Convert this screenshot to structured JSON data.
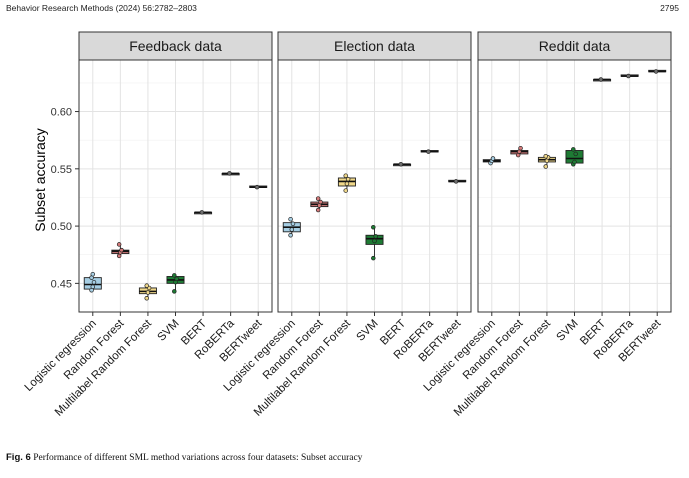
{
  "header": {
    "journal": "Behavior Research Methods (2024) 56:2782–2803",
    "page": "2795"
  },
  "caption": {
    "label": "Fig. 6",
    "text": "Performance of different SML method variations across four datasets: Subset accuracy"
  },
  "chart_data": {
    "type": "box",
    "ylabel": "Subset accuracy",
    "ylim": [
      0.425,
      0.645
    ],
    "yticks": [
      0.45,
      0.5,
      0.55,
      0.6
    ],
    "ytick_labels": [
      "0.45",
      "0.50",
      "0.55",
      "0.60"
    ],
    "grid": true,
    "categories": [
      "Logistic regression",
      "Random Forest",
      "Multilabel Random Forest",
      "SVM",
      "BERT",
      "RoBERTa",
      "BERTweet"
    ],
    "colors": [
      "#a6cee3",
      "#d57b7b",
      "#f0d88a",
      "#1e7b34",
      "#6e6e6e",
      "#6e6e6e",
      "#6e6e6e"
    ],
    "panels": [
      {
        "title": "Feedback data",
        "boxes": [
          {
            "min": 0.444,
            "q1": 0.445,
            "median": 0.449,
            "q3": 0.455,
            "max": 0.458,
            "points": [
              0.444,
              0.447,
              0.451,
              0.455,
              0.458
            ]
          },
          {
            "min": 0.474,
            "q1": 0.476,
            "median": 0.478,
            "q3": 0.479,
            "max": 0.484,
            "points": [
              0.474,
              0.477,
              0.479,
              0.484
            ]
          },
          {
            "min": 0.437,
            "q1": 0.441,
            "median": 0.443,
            "q3": 0.446,
            "max": 0.448,
            "points": [
              0.437,
              0.442,
              0.446,
              0.448
            ]
          },
          {
            "min": 0.443,
            "q1": 0.45,
            "median": 0.453,
            "q3": 0.456,
            "max": 0.457,
            "points": [
              0.443,
              0.451,
              0.454,
              0.457
            ]
          },
          {
            "min": 0.511,
            "q1": 0.511,
            "median": 0.512,
            "q3": 0.512,
            "max": 0.512,
            "points": [
              0.512
            ]
          },
          {
            "min": 0.545,
            "q1": 0.545,
            "median": 0.546,
            "q3": 0.546,
            "max": 0.546,
            "points": [
              0.546
            ]
          },
          {
            "min": 0.534,
            "q1": 0.534,
            "median": 0.534,
            "q3": 0.535,
            "max": 0.535,
            "points": [
              0.534
            ]
          }
        ]
      },
      {
        "title": "Election data",
        "boxes": [
          {
            "min": 0.492,
            "q1": 0.495,
            "median": 0.499,
            "q3": 0.503,
            "max": 0.506,
            "points": [
              0.492,
              0.497,
              0.502,
              0.506
            ]
          },
          {
            "min": 0.514,
            "q1": 0.517,
            "median": 0.519,
            "q3": 0.521,
            "max": 0.524,
            "points": [
              0.514,
              0.518,
              0.521,
              0.524
            ]
          },
          {
            "min": 0.531,
            "q1": 0.535,
            "median": 0.539,
            "q3": 0.542,
            "max": 0.544,
            "points": [
              0.531,
              0.537,
              0.541,
              0.544
            ]
          },
          {
            "min": 0.472,
            "q1": 0.484,
            "median": 0.489,
            "q3": 0.492,
            "max": 0.499,
            "points": [
              0.472,
              0.487,
              0.491,
              0.499
            ]
          },
          {
            "min": 0.553,
            "q1": 0.553,
            "median": 0.554,
            "q3": 0.554,
            "max": 0.554,
            "points": [
              0.554
            ]
          },
          {
            "min": 0.565,
            "q1": 0.565,
            "median": 0.565,
            "q3": 0.566,
            "max": 0.566,
            "points": [
              0.565
            ]
          },
          {
            "min": 0.539,
            "q1": 0.539,
            "median": 0.539,
            "q3": 0.54,
            "max": 0.54,
            "points": [
              0.539
            ]
          }
        ]
      },
      {
        "title": "Reddit data",
        "boxes": [
          {
            "min": 0.555,
            "q1": 0.556,
            "median": 0.557,
            "q3": 0.558,
            "max": 0.559,
            "points": [
              0.555,
              0.557,
              0.559
            ]
          },
          {
            "min": 0.562,
            "q1": 0.563,
            "median": 0.565,
            "q3": 0.566,
            "max": 0.568,
            "points": [
              0.562,
              0.565,
              0.568
            ]
          },
          {
            "min": 0.552,
            "q1": 0.556,
            "median": 0.558,
            "q3": 0.56,
            "max": 0.561,
            "points": [
              0.552,
              0.557,
              0.56,
              0.561
            ]
          },
          {
            "min": 0.554,
            "q1": 0.555,
            "median": 0.559,
            "q3": 0.566,
            "max": 0.567,
            "points": [
              0.554,
              0.556,
              0.563,
              0.567
            ]
          },
          {
            "min": 0.627,
            "q1": 0.627,
            "median": 0.628,
            "q3": 0.628,
            "max": 0.628,
            "points": [
              0.628
            ]
          },
          {
            "min": 0.631,
            "q1": 0.631,
            "median": 0.631,
            "q3": 0.632,
            "max": 0.632,
            "points": [
              0.631
            ]
          },
          {
            "min": 0.635,
            "q1": 0.635,
            "median": 0.635,
            "q3": 0.636,
            "max": 0.636,
            "points": [
              0.635
            ]
          }
        ]
      }
    ]
  }
}
